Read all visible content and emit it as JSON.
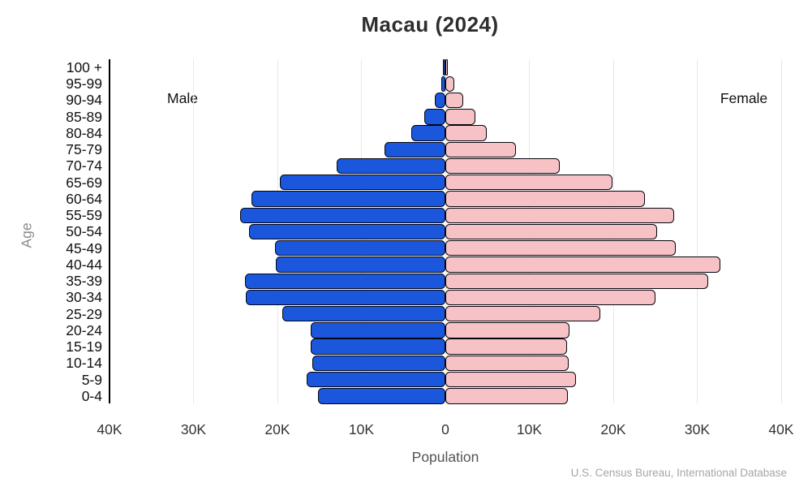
{
  "title": "Macau (2024)",
  "labels": {
    "male": "Male",
    "female": "Female",
    "age_axis": "Age",
    "x_axis": "Population",
    "source": "U.S. Census Bureau, International Database"
  },
  "colors": {
    "male_bar": "#1A57DD",
    "female_bar": "#F6C2C6",
    "bar_border": "#05050F",
    "gridline": "#E7E7E7",
    "axis_spine": "#000000"
  },
  "chart_data": {
    "type": "bar",
    "subtype": "population-pyramid",
    "title": "Macau (2024)",
    "xlabel": "Population",
    "ylabel": "Age",
    "grid": true,
    "source": "U.S. Census Bureau, International Database",
    "categories": [
      "100 +",
      "95-99",
      "90-94",
      "85-89",
      "80-84",
      "75-79",
      "70-74",
      "65-69",
      "60-64",
      "55-59",
      "50-54",
      "45-49",
      "40-44",
      "35-39",
      "30-34",
      "25-29",
      "20-24",
      "15-19",
      "10-14",
      "5-9",
      "0-4"
    ],
    "series": [
      {
        "name": "Male",
        "side": "left",
        "color": "#1A57DD",
        "values": [
          100,
          500,
          1300,
          2500,
          4100,
          7200,
          12900,
          19700,
          23100,
          24400,
          23400,
          20300,
          20200,
          23900,
          23800,
          19400,
          16000,
          16000,
          15800,
          16500,
          15200
        ]
      },
      {
        "name": "Female",
        "side": "right",
        "color": "#F6C2C6",
        "values": [
          200,
          1100,
          2100,
          3600,
          4900,
          8400,
          13600,
          19900,
          23800,
          27300,
          25200,
          27400,
          32800,
          31300,
          25000,
          18500,
          14800,
          14500,
          14700,
          15600,
          14600
        ]
      }
    ],
    "x_ticks": {
      "labels": [
        "40K",
        "30K",
        "20K",
        "10K",
        "0",
        "10K",
        "20K",
        "30K",
        "40K"
      ],
      "values": [
        -40000,
        -30000,
        -20000,
        -10000,
        0,
        10000,
        20000,
        30000,
        40000
      ]
    },
    "xlim": [
      -40000,
      40200
    ]
  }
}
